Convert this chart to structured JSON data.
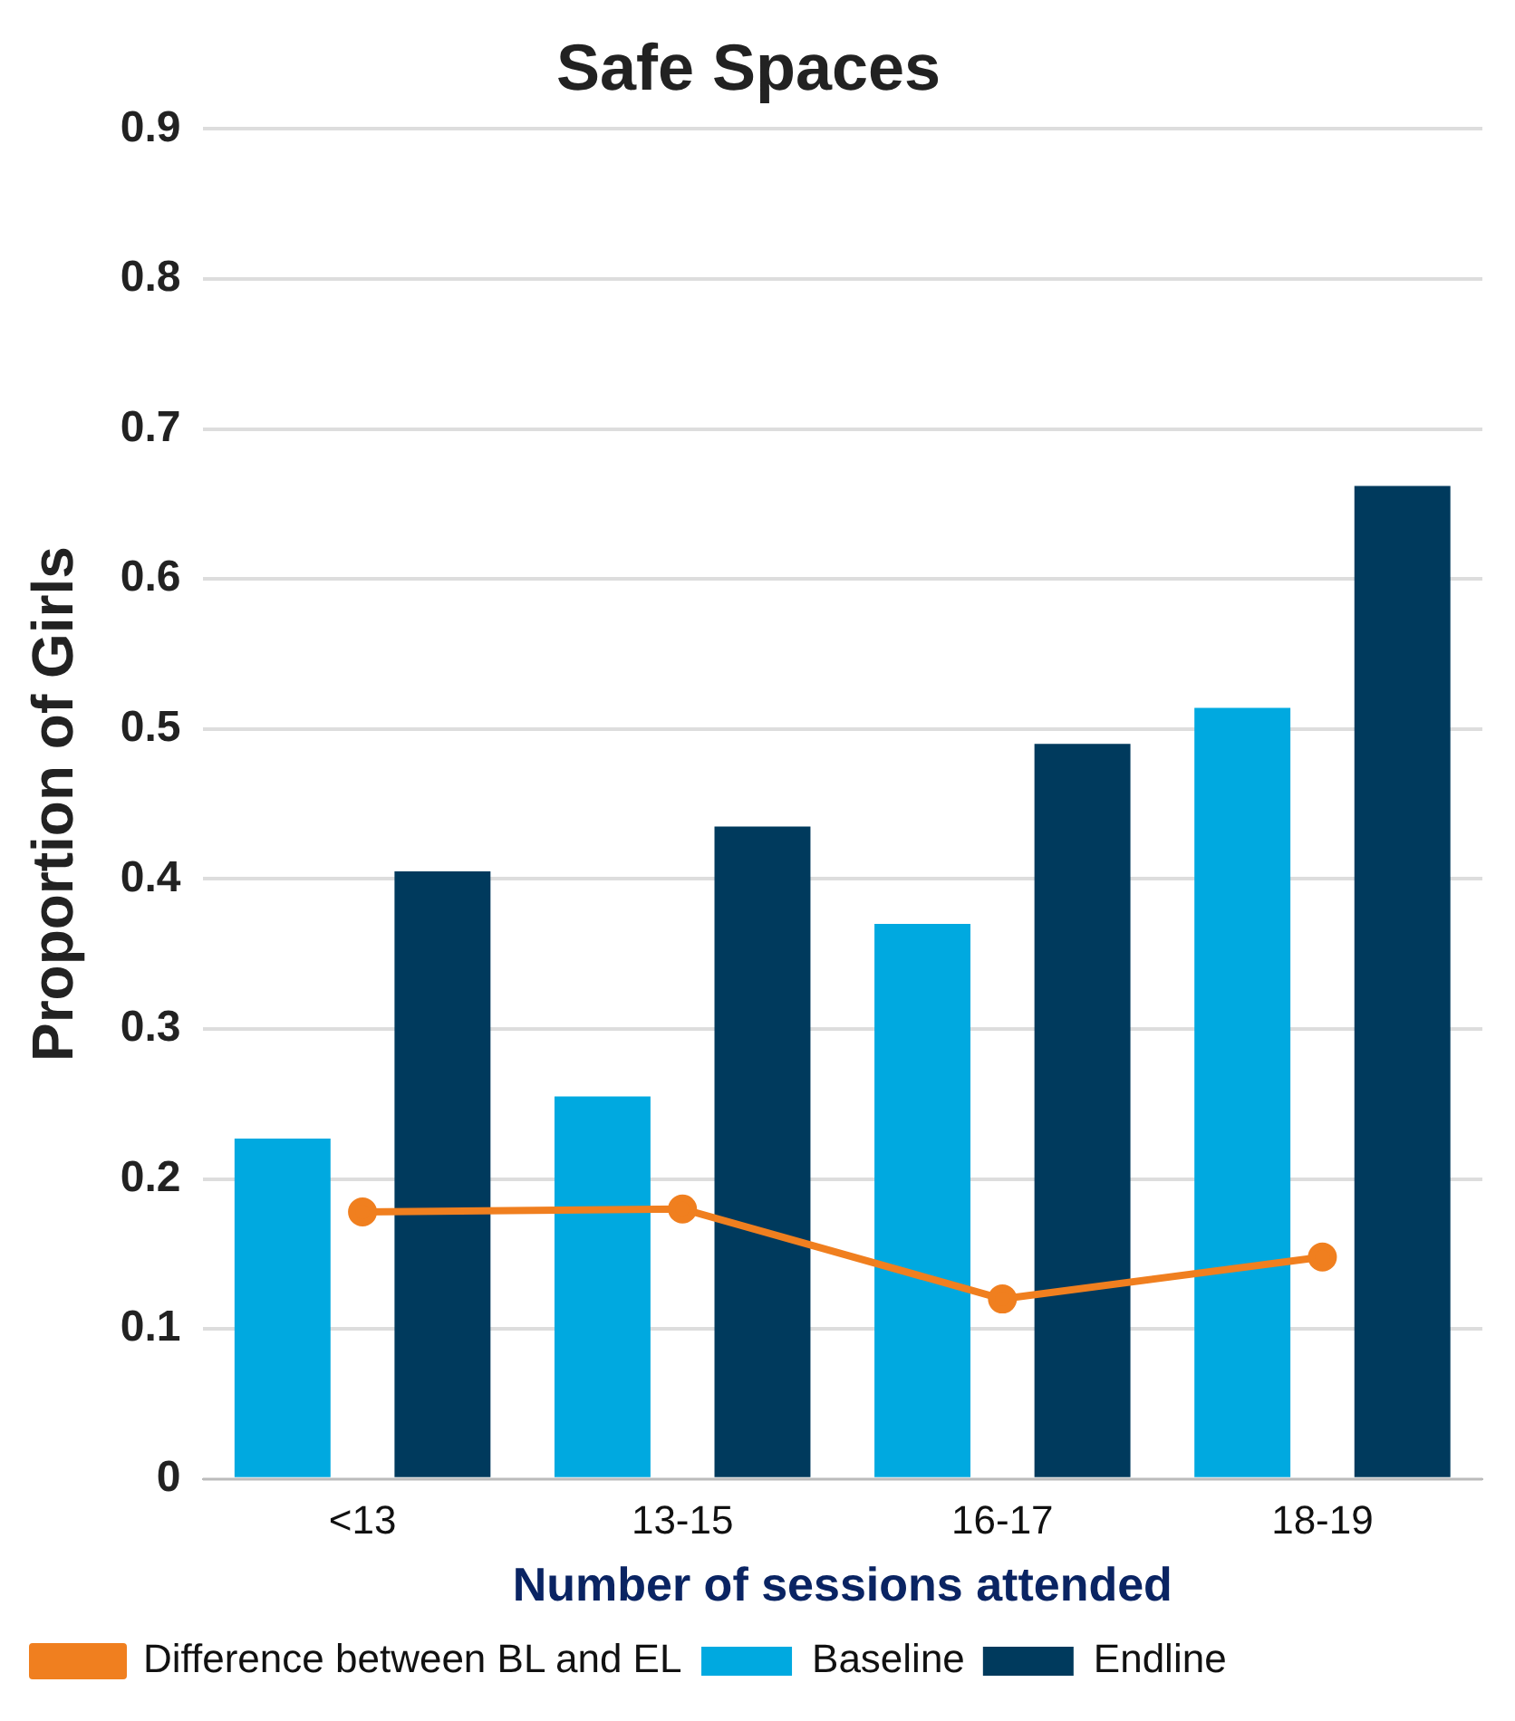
{
  "chart_data": {
    "type": "bar",
    "title": "Safe Spaces",
    "xlabel": "Number of sessions attended",
    "ylabel": "Proportion of Girls",
    "categories": [
      "<13",
      "13-15",
      "16-17",
      "18-19"
    ],
    "series": [
      {
        "name": "Baseline",
        "color": "#00a9e0",
        "values": [
          0.227,
          0.255,
          0.37,
          0.514
        ]
      },
      {
        "name": "Endline",
        "color": "#003a5d",
        "values": [
          0.405,
          0.435,
          0.49,
          0.662
        ]
      },
      {
        "name": "Difference between BL and EL",
        "type": "line",
        "color": "#f07f1f",
        "values": [
          0.178,
          0.18,
          0.12,
          0.148
        ]
      }
    ],
    "ylim": [
      0,
      0.9
    ],
    "yticks": [
      0,
      0.1,
      0.2,
      0.3,
      0.4,
      0.5,
      0.6,
      0.7,
      0.8,
      0.9
    ],
    "grid": "y",
    "legend": "bottom",
    "marker": "circle",
    "line_style": "solid"
  }
}
